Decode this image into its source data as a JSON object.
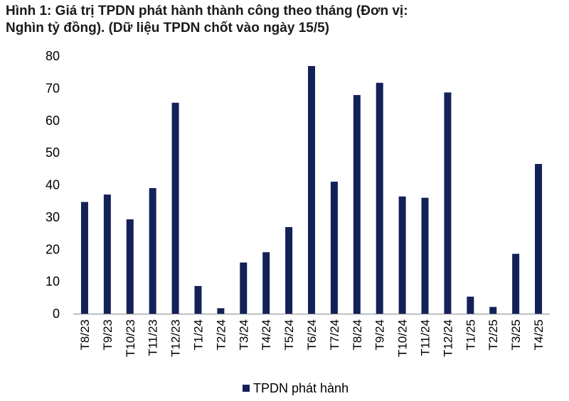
{
  "title_line1": "Hình 1: Giá trị TPDN phát hành thành công theo tháng (Đơn vị:",
  "title_line2": "Nghìn tỷ đồng). (Dữ liệu TPDN chốt vào ngày 15/5)",
  "chart_data": {
    "type": "bar",
    "title": "Hình 1: Giá trị TPDN phát hành thành công theo tháng (Đơn vị: Nghìn tỷ đồng). (Dữ liệu TPDN chốt vào ngày 15/5)",
    "categories": [
      "T8/23",
      "T9/23",
      "T10/23",
      "T11/23",
      "T12/23",
      "T1/24",
      "T2/24",
      "T3/24",
      "T4/24",
      "T5/24",
      "T6/24",
      "T7/24",
      "T8/24",
      "T9/24",
      "T10/24",
      "T11/24",
      "T12/24",
      "T1/25",
      "T2/25",
      "T3/25",
      "T4/25"
    ],
    "series": [
      {
        "name": "TPDN phát hành",
        "values": [
          34.7,
          37.0,
          29.3,
          39.0,
          65.5,
          8.6,
          1.7,
          15.9,
          19.1,
          26.9,
          76.9,
          41.0,
          67.9,
          71.7,
          36.4,
          36.0,
          68.7,
          5.3,
          2.1,
          18.6,
          46.5
        ]
      }
    ],
    "ylim": [
      0,
      80
    ],
    "yticks": [
      0,
      10,
      20,
      30,
      40,
      50,
      60,
      70,
      80
    ],
    "xlabel": "",
    "ylabel": "",
    "grid": false,
    "legend": "bottom-center",
    "colors": {
      "bar": "#142159"
    }
  }
}
